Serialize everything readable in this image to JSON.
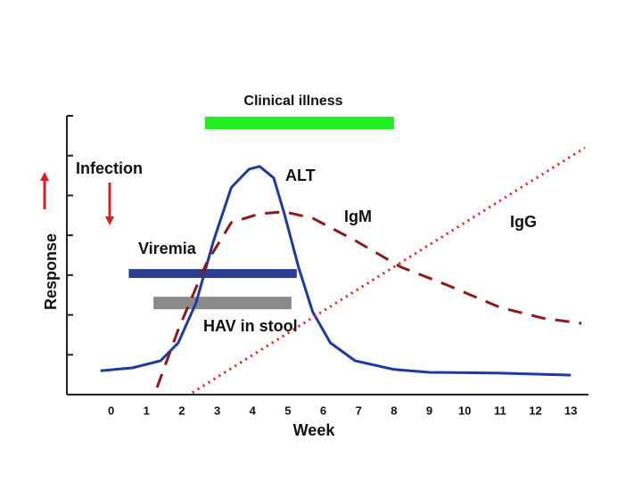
{
  "chart_data": {
    "type": "line",
    "x_label": "Week",
    "y_label": "Response",
    "xlim": [
      -1.25,
      13.5
    ],
    "ylim": [
      0,
      7
    ],
    "xticks": [
      0,
      1,
      2,
      3,
      4,
      5,
      6,
      7,
      8,
      9,
      10,
      11,
      12,
      13
    ],
    "yticks": [
      1,
      2,
      3,
      4,
      5,
      6,
      7
    ],
    "series": [
      {
        "name": "ALT",
        "color": "#1f3a9e",
        "style": "solid",
        "x": [
          -0.3,
          0.6,
          1.4,
          1.9,
          2.4,
          2.9,
          3.4,
          3.9,
          4.2,
          4.6,
          4.9,
          5.3,
          5.7,
          6.2,
          6.9,
          8.0,
          9.0,
          11.0,
          13.0
        ],
        "values": [
          0.6,
          0.67,
          0.85,
          1.3,
          2.3,
          3.87,
          5.2,
          5.66,
          5.73,
          5.44,
          4.54,
          3.2,
          2.08,
          1.3,
          0.85,
          0.63,
          0.56,
          0.54,
          0.49
        ]
      },
      {
        "name": "IgM",
        "color": "#8b1a1a",
        "style": "dashed",
        "x": [
          1.3,
          1.9,
          2.7,
          3.4,
          4.2,
          4.9,
          5.7,
          6.9,
          8.2,
          9.5,
          11.0,
          12.2,
          13.3
        ],
        "values": [
          0.18,
          1.63,
          3.31,
          4.32,
          4.54,
          4.59,
          4.43,
          3.87,
          3.2,
          2.75,
          2.19,
          1.92,
          1.79
        ]
      },
      {
        "name": "IgG",
        "color": "#e02020",
        "style": "dotted",
        "x": [
          2.3,
          13.4
        ],
        "values": [
          0.05,
          6.2
        ]
      }
    ],
    "ranges": [
      {
        "name": "Clinical illness",
        "color": "#22ee22",
        "start": 2.65,
        "end": 8.0,
        "y": 6.82
      },
      {
        "name": "Viremia",
        "color": "#2a3f8f",
        "start": 0.5,
        "end": 5.25,
        "y": 3.04
      },
      {
        "name": "HAV in stool",
        "color": "#8a8a8a",
        "start": 1.2,
        "end": 5.1,
        "y": 2.3
      }
    ],
    "annotations": [
      "Infection"
    ]
  }
}
